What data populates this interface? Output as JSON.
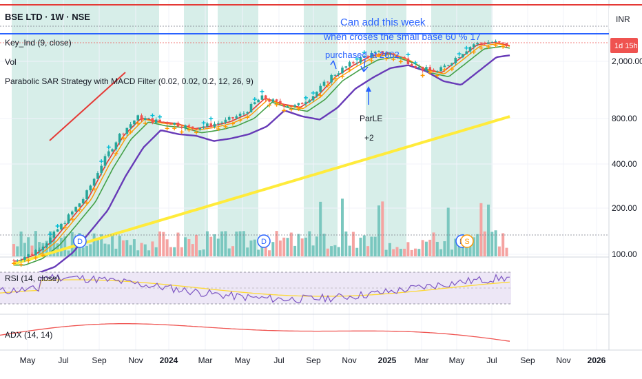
{
  "header": {
    "symbol": "BSE LTD · 1W · NSE",
    "indicator1": "Key_Ind (9, close)",
    "indicator2": "Vol",
    "indicator3": "Parabolic SAR Strategy with MACD Filter (0.02, 0.02, 0.2, 12, 26, 9)"
  },
  "price_axis": {
    "currency": "INR",
    "ticks": [
      "2,000.00",
      "800.00",
      "400.00",
      "200.00",
      "100.00"
    ],
    "price_tag": "1d 15h"
  },
  "time_axis": {
    "labels": [
      "May",
      "Jul",
      "Sep",
      "Nov",
      "2024",
      "Mar",
      "May",
      "Jul",
      "Sep",
      "Nov",
      "2025",
      "Mar",
      "May",
      "Jul",
      "Sep",
      "Nov",
      "2026"
    ]
  },
  "annotations": {
    "line1": "Can add this week",
    "line2": "when croses the small base 60 % 17",
    "line3": "purchased at 2662",
    "signal_label": "ParLE",
    "signal_value": "+2",
    "dividend_marker": "D",
    "split_marker": "S"
  },
  "panes": {
    "rsi_label": "RSI (14, close)",
    "adx_label": "ADX (14, 14)"
  },
  "colors": {
    "bull": "#26a69a",
    "bear": "#ef5350",
    "ema_red": "#e53935",
    "ema_orange": "#ff9800",
    "ema_green": "#43a047",
    "ema_purple": "#673ab7",
    "ema_yellow": "#ffeb3b",
    "sar": "#00bcd4",
    "highlight": "#d7eee9",
    "rsi_line": "#7e57c2",
    "rsi_ma": "#fdd835",
    "rsi_band": "#ede7f6",
    "adx": "#ef5350",
    "resistance": "#e53935",
    "support": "#2962ff"
  },
  "chart_data": {
    "type": "candlestick",
    "interval": "1W",
    "y_scale": "log",
    "x": [
      "2023-04",
      "2023-05",
      "2023-06",
      "2023-07",
      "2023-08",
      "2023-09",
      "2023-10",
      "2023-11",
      "2023-12",
      "2024-01",
      "2024-02",
      "2024-03",
      "2024-04",
      "2024-05",
      "2024-06",
      "2024-07",
      "2024-08",
      "2024-09",
      "2024-10",
      "2024-11",
      "2024-12",
      "2025-01",
      "2025-02",
      "2025-03",
      "2025-04",
      "2025-05",
      "2025-06",
      "2025-07",
      "2025-08"
    ],
    "series": [
      {
        "name": "close",
        "values": [
          95,
          105,
          130,
          180,
          250,
          420,
          650,
          850,
          800,
          780,
          720,
          750,
          800,
          900,
          1150,
          1050,
          1000,
          1200,
          1600,
          1900,
          2200,
          2300,
          2100,
          1800,
          1700,
          2100,
          2600,
          2700,
          2550
        ]
      },
      {
        "name": "Key_Ind (9, close)",
        "values": [
          96,
          103,
          125,
          170,
          235,
          390,
          600,
          820,
          810,
          790,
          740,
          750,
          790,
          880,
          1100,
          1060,
          1010,
          1180,
          1550,
          1850,
          2150,
          2250,
          2150,
          1900,
          1750,
          2000,
          2450,
          2650,
          2600
        ]
      }
    ],
    "levels": {
      "resistance": 3000,
      "support": 2450
    }
  }
}
